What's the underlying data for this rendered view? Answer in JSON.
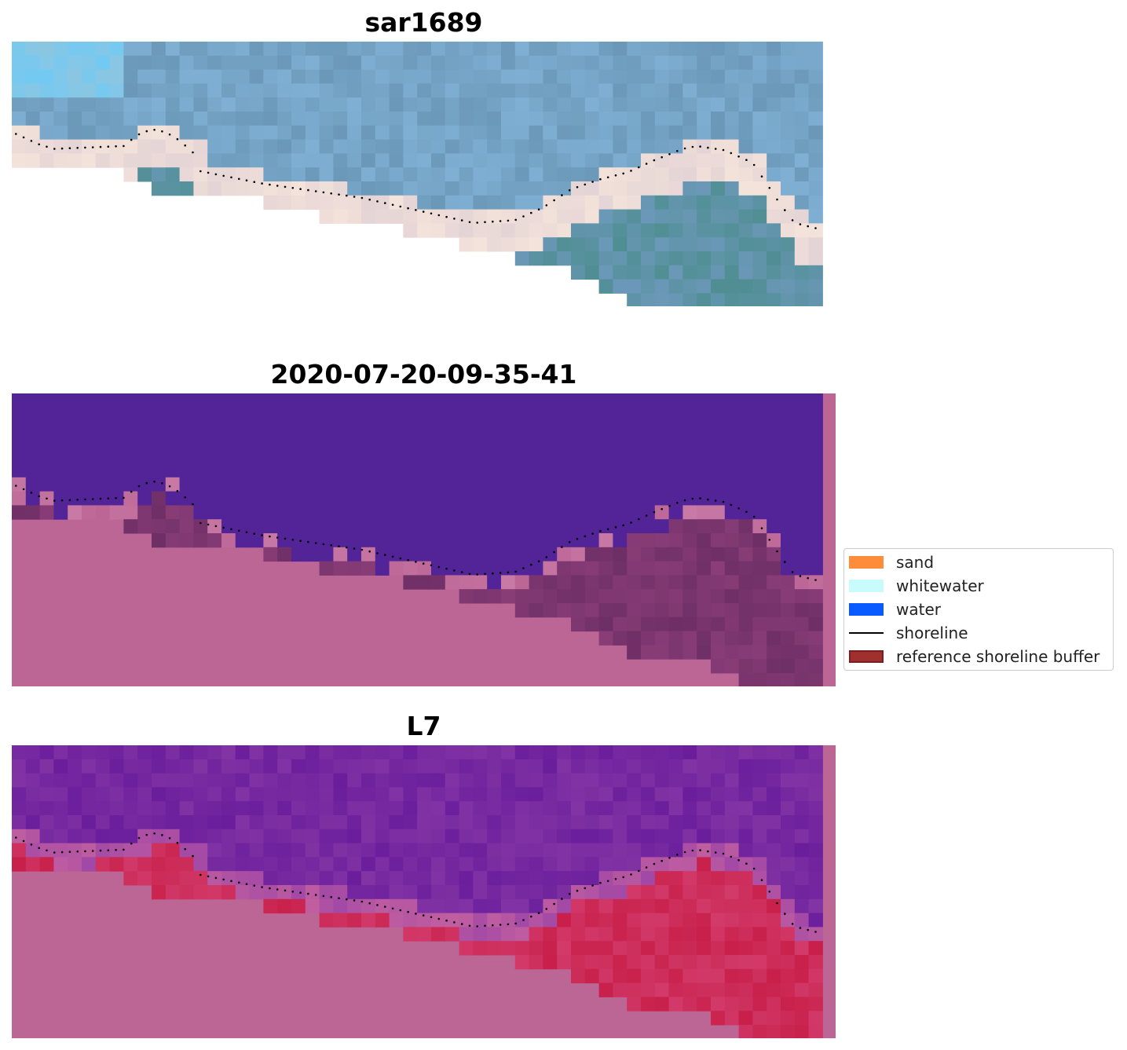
{
  "panels": [
    {
      "title": "sar1689"
    },
    {
      "title": "2020-07-20-09-35-41"
    },
    {
      "title": "L7"
    }
  ],
  "legend": {
    "items": [
      {
        "label": "sand",
        "color": "#ff8c3a",
        "kind": "patch"
      },
      {
        "label": "whitewater",
        "color": "#c8fbfb",
        "kind": "patch"
      },
      {
        "label": "water",
        "color": "#0a5bff",
        "kind": "patch"
      },
      {
        "label": "shoreline",
        "color": "#000000",
        "kind": "line"
      },
      {
        "label": "reference shoreline buffer",
        "color": "#a0302e",
        "kind": "patch"
      }
    ]
  },
  "colors": {
    "nodata": "#bc6696",
    "classified_water": "#522497",
    "ndwi_water": "#6a1e9c",
    "ndwi_land": "#c8204a",
    "sea_light": "#7fb0d4",
    "sea_dark": "#6b98b8",
    "shore_white": "#f4e3da",
    "deep_teal": "#4f8e92"
  }
}
